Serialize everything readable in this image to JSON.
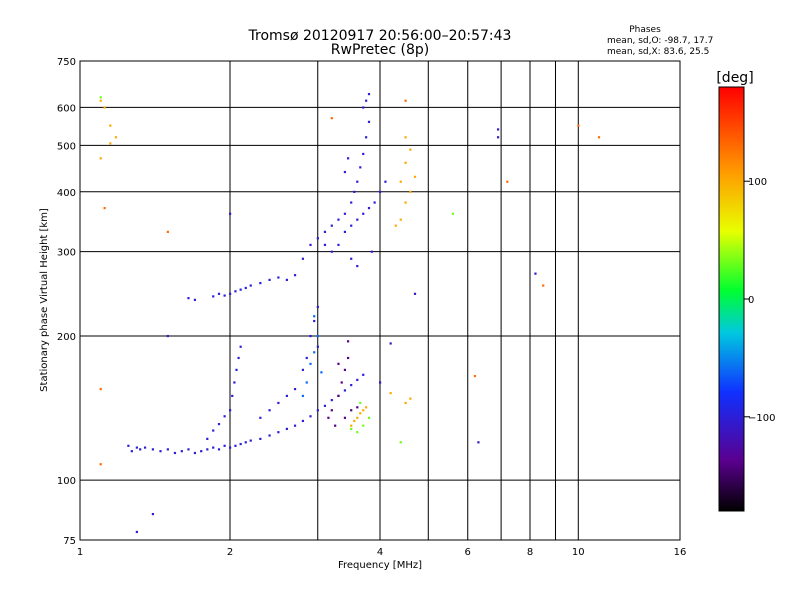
{
  "chart_data": {
    "type": "scatter",
    "title": "Tromsø 20120917 20:56:00–20:57:43",
    "subtitle": "RwPretec (8p)",
    "xlabel": "Frequency [MHz]",
    "ylabel": "Stationary phase Virtual Height [km]",
    "x_scale": "log",
    "y_scale": "log",
    "xlim": [
      1,
      16
    ],
    "ylim": [
      75,
      750
    ],
    "x_ticks": [
      1,
      2,
      4,
      6,
      8,
      10,
      16
    ],
    "x_tick_labels": [
      "1",
      "2",
      "4",
      "6",
      "8",
      "10",
      "16"
    ],
    "x_minor_gridlines": [
      3,
      5,
      7,
      9
    ],
    "y_ticks": [
      75,
      100,
      200,
      300,
      400,
      500,
      600,
      750
    ],
    "y_tick_labels": [
      "75",
      "100",
      "200",
      "300",
      "400",
      "500",
      "600",
      "750"
    ],
    "grid": true,
    "stats": {
      "heading": "Phases",
      "line_o": "mean, sd,O: -98.7, 17.7",
      "line_x": "mean, sd,X:  83.6, 25.5"
    },
    "colorbar": {
      "label": "[deg]",
      "range": [
        -180,
        180
      ],
      "ticks": [
        -100,
        0,
        100
      ],
      "tick_labels": [
        "−100",
        "0",
        "100"
      ],
      "colormap": "rainbow (black–purple–blue–cyan–green–yellow–red)"
    },
    "point_groups": [
      {
        "name": "lower E/F1 trace",
        "phase": -100,
        "points": [
          [
            1.25,
            118
          ],
          [
            1.27,
            115
          ],
          [
            1.3,
            117
          ],
          [
            1.32,
            116
          ],
          [
            1.35,
            117
          ],
          [
            1.4,
            116
          ],
          [
            1.45,
            115
          ],
          [
            1.5,
            116
          ],
          [
            1.55,
            114
          ],
          [
            1.6,
            115
          ],
          [
            1.65,
            116
          ],
          [
            1.7,
            114
          ],
          [
            1.75,
            115
          ],
          [
            1.8,
            116
          ],
          [
            1.85,
            117
          ],
          [
            1.9,
            116
          ],
          [
            1.95,
            118
          ],
          [
            2.0,
            117
          ],
          [
            2.05,
            118
          ],
          [
            2.1,
            119
          ],
          [
            2.15,
            120
          ],
          [
            2.2,
            121
          ],
          [
            2.3,
            122
          ],
          [
            2.4,
            124
          ],
          [
            2.5,
            126
          ],
          [
            2.6,
            128
          ],
          [
            2.7,
            130
          ],
          [
            2.8,
            133
          ],
          [
            2.9,
            136
          ],
          [
            3.0,
            140
          ],
          [
            3.1,
            143
          ],
          [
            3.2,
            147
          ],
          [
            3.3,
            150
          ],
          [
            3.4,
            154
          ],
          [
            3.5,
            158
          ],
          [
            3.6,
            162
          ],
          [
            3.7,
            166
          ]
        ]
      },
      {
        "name": "lower trace vertical streaks",
        "phase": -100,
        "points": [
          [
            1.8,
            122
          ],
          [
            1.85,
            127
          ],
          [
            1.9,
            131
          ],
          [
            1.95,
            136
          ],
          [
            2.0,
            140
          ],
          [
            2.02,
            150
          ],
          [
            2.04,
            160
          ],
          [
            2.06,
            170
          ],
          [
            2.08,
            180
          ],
          [
            2.1,
            190
          ],
          [
            2.3,
            135
          ],
          [
            2.4,
            140
          ],
          [
            2.5,
            145
          ],
          [
            2.6,
            150
          ],
          [
            2.7,
            155
          ],
          [
            2.8,
            170
          ],
          [
            2.85,
            180
          ],
          [
            2.9,
            200
          ],
          [
            2.95,
            215
          ],
          [
            3.0,
            230
          ],
          [
            3.0,
            190
          ]
        ]
      },
      {
        "name": "F1 cusp cyan",
        "phase": -60,
        "points": [
          [
            2.8,
            150
          ],
          [
            2.85,
            160
          ],
          [
            2.9,
            175
          ],
          [
            2.95,
            185
          ],
          [
            3.0,
            200
          ],
          [
            2.95,
            220
          ],
          [
            3.05,
            168
          ]
        ]
      },
      {
        "name": "X-mode yellow",
        "phase": 100,
        "points": [
          [
            3.5,
            130
          ],
          [
            3.55,
            133
          ],
          [
            3.6,
            135
          ],
          [
            3.65,
            138
          ],
          [
            3.7,
            140
          ],
          [
            3.75,
            142
          ],
          [
            4.5,
            145
          ],
          [
            4.6,
            148
          ],
          [
            4.2,
            152
          ],
          [
            4.4,
            350
          ],
          [
            4.5,
            380
          ],
          [
            4.6,
            400
          ],
          [
            4.4,
            420
          ],
          [
            4.7,
            430
          ],
          [
            4.5,
            460
          ],
          [
            4.6,
            490
          ],
          [
            4.5,
            520
          ],
          [
            4.3,
            340
          ],
          [
            1.1,
            620
          ],
          [
            1.12,
            600
          ],
          [
            1.15,
            550
          ],
          [
            1.18,
            520
          ],
          [
            1.1,
            470
          ],
          [
            1.15,
            505
          ]
        ]
      },
      {
        "name": "X-mode green",
        "phase": 30,
        "points": [
          [
            3.5,
            128
          ],
          [
            3.6,
            126
          ],
          [
            3.7,
            130
          ],
          [
            3.8,
            135
          ],
          [
            3.65,
            145
          ],
          [
            4.4,
            120
          ],
          [
            1.1,
            630
          ],
          [
            5.6,
            360
          ]
        ]
      },
      {
        "name": "purple traces",
        "phase": -140,
        "points": [
          [
            3.2,
            140
          ],
          [
            3.3,
            150
          ],
          [
            3.35,
            160
          ],
          [
            3.4,
            170
          ],
          [
            3.45,
            180
          ],
          [
            3.5,
            140
          ],
          [
            3.25,
            130
          ],
          [
            3.15,
            135
          ],
          [
            3.6,
            142
          ],
          [
            3.4,
            135
          ],
          [
            3.45,
            195
          ],
          [
            3.3,
            175
          ]
        ]
      },
      {
        "name": "F2 trace",
        "phase": -100,
        "points": [
          [
            1.65,
            240
          ],
          [
            1.7,
            238
          ],
          [
            1.85,
            242
          ],
          [
            1.9,
            245
          ],
          [
            1.95,
            243
          ],
          [
            2.0,
            245
          ],
          [
            2.05,
            248
          ],
          [
            2.1,
            250
          ],
          [
            2.15,
            252
          ],
          [
            2.2,
            255
          ],
          [
            2.3,
            258
          ],
          [
            2.4,
            262
          ],
          [
            2.5,
            265
          ],
          [
            2.6,
            262
          ],
          [
            2.7,
            268
          ],
          [
            2.8,
            290
          ],
          [
            2.9,
            310
          ],
          [
            3.0,
            320
          ],
          [
            3.1,
            330
          ],
          [
            3.2,
            340
          ],
          [
            3.3,
            350
          ],
          [
            3.4,
            360
          ],
          [
            3.5,
            380
          ],
          [
            3.55,
            400
          ],
          [
            3.6,
            420
          ],
          [
            3.65,
            450
          ],
          [
            3.7,
            480
          ],
          [
            3.75,
            520
          ],
          [
            3.8,
            560
          ],
          [
            3.7,
            600
          ],
          [
            3.75,
            620
          ],
          [
            3.8,
            640
          ],
          [
            3.3,
            310
          ],
          [
            3.4,
            330
          ],
          [
            3.5,
            340
          ],
          [
            3.6,
            350
          ],
          [
            3.7,
            360
          ],
          [
            3.8,
            370
          ],
          [
            3.2,
            300
          ],
          [
            3.1,
            310
          ]
        ]
      },
      {
        "name": "F2 extra scatter",
        "phase": -100,
        "points": [
          [
            3.9,
            380
          ],
          [
            4.0,
            400
          ],
          [
            4.1,
            420
          ],
          [
            3.85,
            300
          ],
          [
            3.6,
            280
          ],
          [
            3.5,
            290
          ],
          [
            3.45,
            470
          ],
          [
            3.4,
            440
          ]
        ]
      },
      {
        "name": "sparse blue",
        "phase": -110,
        "points": [
          [
            1.3,
            78
          ],
          [
            1.4,
            85
          ],
          [
            1.5,
            200
          ],
          [
            2.0,
            360
          ],
          [
            6.9,
            540
          ],
          [
            6.9,
            520
          ],
          [
            8.2,
            270
          ],
          [
            4.0,
            160
          ],
          [
            4.2,
            193
          ],
          [
            4.7,
            245
          ],
          [
            6.3,
            120
          ]
        ]
      },
      {
        "name": "sparse orange/yellow",
        "phase": 130,
        "points": [
          [
            4.5,
            620
          ],
          [
            7.2,
            420
          ],
          [
            10.0,
            550
          ],
          [
            11.0,
            520
          ],
          [
            6.2,
            165
          ],
          [
            8.5,
            255
          ],
          [
            1.1,
            108
          ],
          [
            1.12,
            370
          ],
          [
            1.1,
            155
          ],
          [
            1.5,
            330
          ],
          [
            3.2,
            570
          ]
        ]
      }
    ]
  }
}
